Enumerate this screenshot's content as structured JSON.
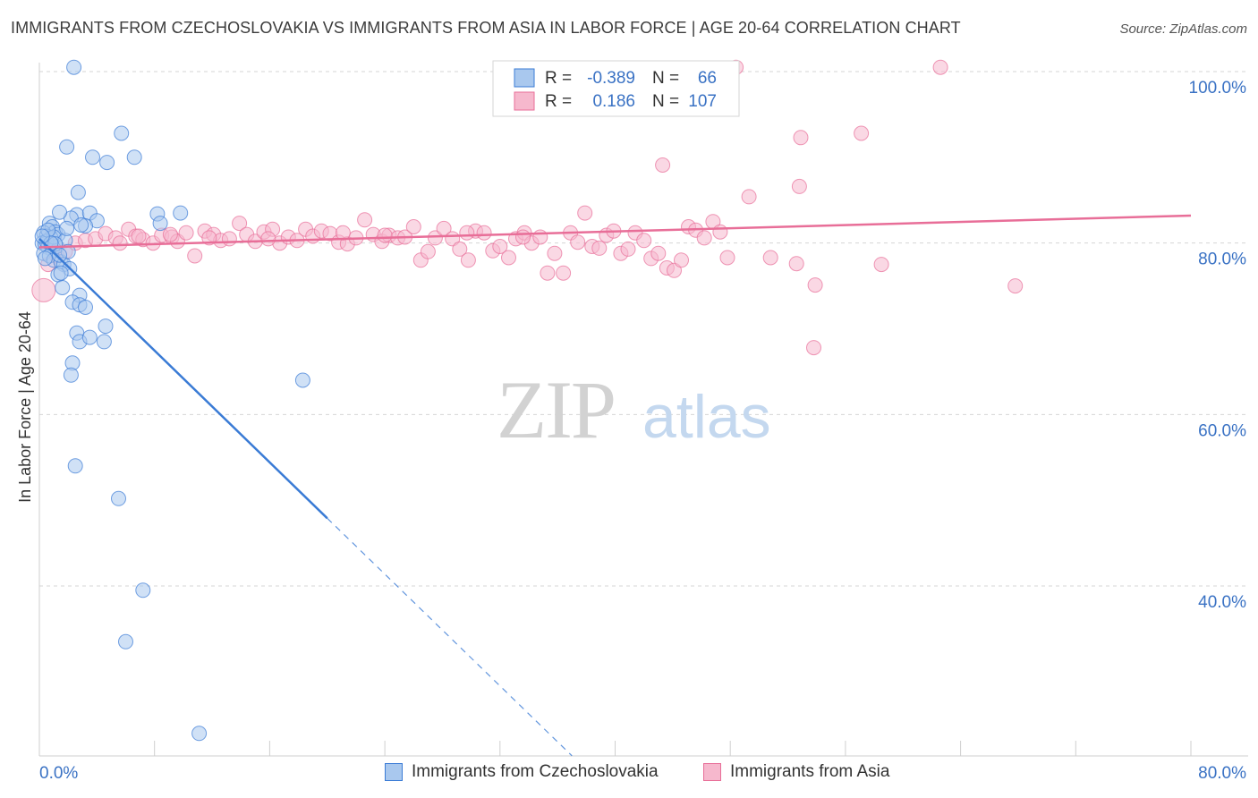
{
  "header": {
    "title": "IMMIGRANTS FROM CZECHOSLOVAKIA VS IMMIGRANTS FROM ASIA IN LABOR FORCE | AGE 20-64 CORRELATION CHART",
    "source": "Source: ZipAtlas.com"
  },
  "watermark": {
    "zip": "ZIP",
    "atlas": "atlas"
  },
  "colors": {
    "blue": "#3a7bd5",
    "blue_fill": "#a9c8ee",
    "pink": "#e86e98",
    "pink_fill": "#f6b8cd",
    "axis_label": "#3a72c4",
    "grid": "#d5d5d5"
  },
  "legend_box": {
    "rows": [
      {
        "r_label": "R =",
        "r_value": "-0.389",
        "n_label": "N =",
        "n_value": "66"
      },
      {
        "r_label": "R =",
        "r_value": "0.186",
        "n_label": "N =",
        "n_value": "107"
      }
    ]
  },
  "legend_bottom": {
    "items": [
      "Immigrants from Czechoslovakia",
      "Immigrants from Asia"
    ]
  },
  "chart_data": {
    "type": "scatter",
    "title": "IMMIGRANTS FROM CZECHOSLOVAKIA VS IMMIGRANTS FROM ASIA IN LABOR FORCE | AGE 20-64 CORRELATION CHART",
    "xlabel": "",
    "ylabel": "In Labor Force | Age 20-64",
    "xlim": [
      0,
      80
    ],
    "ylim": [
      20,
      102
    ],
    "x_tick_labels": [
      "0.0%",
      "80.0%"
    ],
    "y_ticks": [
      40,
      60,
      80,
      100
    ],
    "y_tick_labels": [
      "40.0%",
      "60.0%",
      "80.0%",
      "100.0%"
    ],
    "grid": true,
    "legend_position": "top-center",
    "series": [
      {
        "name": "Immigrants from Czechoslovakia",
        "color": "#3a7bd5",
        "r": -0.389,
        "n": 66,
        "trend": {
          "x0": 0,
          "y0": 80.5,
          "x1": 20.0,
          "y1": 47.9,
          "dash_to_x": 37.0
        },
        "points": [
          [
            2.4,
            100.5
          ],
          [
            1.9,
            91.2
          ],
          [
            3.7,
            90.0
          ],
          [
            4.7,
            89.4
          ],
          [
            5.7,
            92.8
          ],
          [
            6.6,
            90.0
          ],
          [
            2.7,
            85.9
          ],
          [
            2.6,
            83.3
          ],
          [
            3.5,
            83.5
          ],
          [
            4.0,
            82.6
          ],
          [
            3.2,
            82.0
          ],
          [
            2.2,
            82.9
          ],
          [
            1.4,
            83.6
          ],
          [
            8.2,
            83.4
          ],
          [
            9.8,
            83.5
          ],
          [
            8.4,
            82.3
          ],
          [
            0.7,
            82.3
          ],
          [
            0.9,
            81.9
          ],
          [
            1.1,
            81.3
          ],
          [
            1.3,
            81.0
          ],
          [
            0.3,
            81.2
          ],
          [
            0.5,
            80.8
          ],
          [
            0.8,
            80.6
          ],
          [
            0.2,
            80.0
          ],
          [
            0.4,
            79.9
          ],
          [
            0.6,
            79.5
          ],
          [
            0.9,
            79.2
          ],
          [
            1.2,
            79.6
          ],
          [
            0.3,
            78.8
          ],
          [
            0.7,
            78.5
          ],
          [
            1.0,
            78.0
          ],
          [
            1.5,
            77.8
          ],
          [
            1.7,
            77.5
          ],
          [
            2.1,
            77.0
          ],
          [
            1.3,
            76.3
          ],
          [
            1.5,
            76.5
          ],
          [
            1.6,
            74.8
          ],
          [
            2.8,
            73.9
          ],
          [
            2.3,
            73.1
          ],
          [
            2.8,
            72.8
          ],
          [
            3.2,
            72.5
          ],
          [
            2.6,
            69.5
          ],
          [
            4.6,
            70.3
          ],
          [
            2.8,
            68.5
          ],
          [
            3.5,
            69.0
          ],
          [
            4.5,
            68.5
          ],
          [
            2.3,
            66.0
          ],
          [
            2.2,
            64.6
          ],
          [
            18.3,
            64.0
          ],
          [
            2.5,
            54.0
          ],
          [
            5.5,
            50.2
          ],
          [
            7.2,
            39.5
          ],
          [
            6.0,
            33.5
          ],
          [
            11.1,
            22.8
          ],
          [
            0.5,
            80.2
          ],
          [
            1.0,
            80.7
          ],
          [
            0.6,
            81.5
          ],
          [
            1.8,
            80.3
          ],
          [
            2.0,
            79.0
          ],
          [
            0.4,
            78.2
          ],
          [
            1.1,
            79.9
          ],
          [
            1.4,
            78.6
          ],
          [
            0.8,
            80.0
          ],
          [
            0.2,
            80.8
          ],
          [
            1.9,
            81.7
          ],
          [
            2.9,
            82.1
          ]
        ]
      },
      {
        "name": "Immigrants from Asia",
        "color": "#e86e98",
        "r": 0.186,
        "n": 107,
        "trend": {
          "x0": 0,
          "y0": 79.5,
          "x1": 80,
          "y1": 83.2
        },
        "points": [
          [
            0.3,
            74.5
          ],
          [
            0.6,
            77.5
          ],
          [
            1.2,
            78.5
          ],
          [
            1.8,
            79.0
          ],
          [
            2.5,
            80.0
          ],
          [
            3.2,
            80.3
          ],
          [
            3.9,
            80.5
          ],
          [
            4.6,
            81.1
          ],
          [
            5.3,
            80.6
          ],
          [
            5.6,
            80.0
          ],
          [
            6.2,
            81.6
          ],
          [
            6.7,
            80.8
          ],
          [
            7.2,
            80.4
          ],
          [
            7.9,
            80.0
          ],
          [
            8.5,
            80.9
          ],
          [
            9.2,
            80.7
          ],
          [
            9.6,
            80.2
          ],
          [
            10.2,
            81.2
          ],
          [
            10.8,
            78.5
          ],
          [
            11.5,
            81.4
          ],
          [
            12.1,
            81.0
          ],
          [
            12.6,
            80.3
          ],
          [
            13.2,
            80.5
          ],
          [
            13.9,
            82.3
          ],
          [
            14.4,
            81.0
          ],
          [
            15.0,
            80.2
          ],
          [
            15.6,
            81.3
          ],
          [
            16.2,
            81.6
          ],
          [
            16.7,
            80.0
          ],
          [
            17.3,
            80.7
          ],
          [
            17.9,
            80.3
          ],
          [
            18.5,
            81.6
          ],
          [
            19.0,
            80.8
          ],
          [
            19.6,
            81.4
          ],
          [
            20.2,
            81.1
          ],
          [
            20.8,
            80.1
          ],
          [
            21.4,
            79.9
          ],
          [
            22.0,
            80.6
          ],
          [
            22.6,
            82.7
          ],
          [
            23.2,
            81.0
          ],
          [
            23.8,
            80.2
          ],
          [
            24.3,
            80.9
          ],
          [
            24.9,
            80.6
          ],
          [
            25.4,
            80.7
          ],
          [
            26.0,
            81.9
          ],
          [
            26.5,
            78.0
          ],
          [
            27.0,
            79.0
          ],
          [
            27.5,
            80.6
          ],
          [
            28.1,
            81.7
          ],
          [
            28.7,
            80.5
          ],
          [
            29.2,
            79.3
          ],
          [
            29.8,
            78.0
          ],
          [
            30.3,
            81.4
          ],
          [
            30.9,
            81.2
          ],
          [
            31.5,
            79.1
          ],
          [
            32.0,
            79.6
          ],
          [
            32.6,
            78.3
          ],
          [
            33.1,
            80.5
          ],
          [
            33.7,
            81.2
          ],
          [
            34.2,
            80.0
          ],
          [
            34.8,
            80.7
          ],
          [
            35.3,
            76.5
          ],
          [
            35.8,
            78.8
          ],
          [
            36.4,
            76.5
          ],
          [
            36.9,
            81.2
          ],
          [
            37.4,
            80.1
          ],
          [
            37.9,
            83.5
          ],
          [
            38.4,
            79.6
          ],
          [
            38.9,
            79.4
          ],
          [
            39.4,
            80.9
          ],
          [
            39.9,
            81.4
          ],
          [
            40.4,
            78.8
          ],
          [
            40.9,
            79.3
          ],
          [
            41.4,
            81.2
          ],
          [
            42.0,
            80.3
          ],
          [
            42.5,
            78.2
          ],
          [
            43.0,
            78.8
          ],
          [
            43.6,
            77.1
          ],
          [
            44.1,
            76.8
          ],
          [
            44.6,
            78.0
          ],
          [
            45.1,
            81.9
          ],
          [
            45.6,
            81.5
          ],
          [
            46.2,
            80.6
          ],
          [
            46.8,
            82.5
          ],
          [
            47.3,
            81.3
          ],
          [
            47.8,
            78.3
          ],
          [
            48.4,
            100.5
          ],
          [
            49.3,
            85.4
          ],
          [
            50.8,
            78.3
          ],
          [
            52.6,
            77.6
          ],
          [
            52.8,
            86.6
          ],
          [
            52.9,
            92.3
          ],
          [
            53.9,
            75.1
          ],
          [
            53.8,
            67.8
          ],
          [
            57.1,
            92.8
          ],
          [
            58.5,
            77.5
          ],
          [
            62.6,
            100.5
          ],
          [
            67.8,
            75.0
          ],
          [
            43.3,
            89.1
          ],
          [
            29.7,
            81.2
          ],
          [
            15.9,
            80.5
          ],
          [
            21.1,
            81.2
          ],
          [
            11.8,
            80.6
          ],
          [
            9.1,
            81.0
          ],
          [
            6.9,
            80.8
          ],
          [
            33.6,
            80.7
          ],
          [
            24.0,
            80.9
          ]
        ]
      }
    ]
  }
}
